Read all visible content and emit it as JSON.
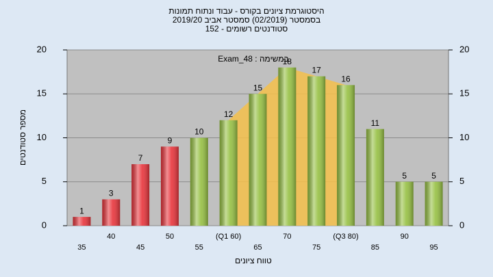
{
  "chart_data": {
    "type": "bar",
    "title": [
      "היסטוגרמת ציונים בקורס - עבוד ונתוח תמונות",
      "בסמסטר (02/2019)  סמסטר אביב 2019/20",
      "סטודנטים רשומים - 152"
    ],
    "annotation": "Exam_48 : במשימה",
    "x_label": "טווח ציונים",
    "y_label": "מספר סטודנטים",
    "categories": [
      "35",
      "40",
      "45",
      "50",
      "55",
      "(Q1 60)",
      "65",
      "70",
      "75",
      "(Q3 80)",
      "85",
      "90",
      "95"
    ],
    "values": [
      1,
      3,
      7,
      9,
      10,
      12,
      15,
      18,
      17,
      16,
      11,
      5,
      5
    ],
    "colors": [
      "#e8343b",
      "#e8343b",
      "#e8343b",
      "#e8343b",
      "#96c043",
      "#96c043",
      "#96c043",
      "#96c043",
      "#96c043",
      "#96c043",
      "#96c043",
      "#96c043",
      "#96c043"
    ],
    "ylim": [
      0,
      20
    ],
    "yticks": [
      0,
      5,
      10,
      15,
      20
    ],
    "grid": true
  }
}
